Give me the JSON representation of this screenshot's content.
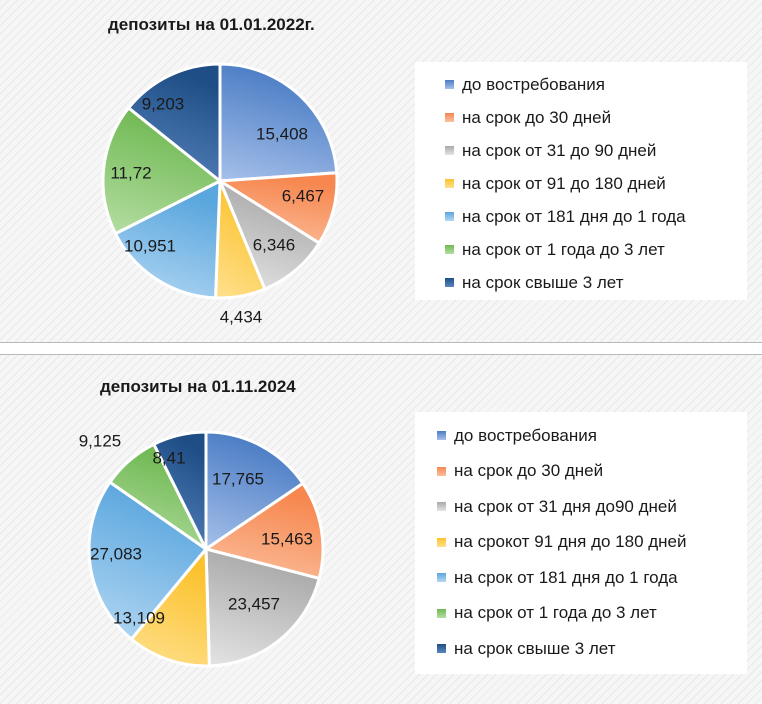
{
  "chart_data": [
    {
      "type": "pie",
      "title": "депозиты на 01.01.2022г.",
      "categories": [
        "до востребования",
        "на срок до 30 дней",
        "на срок от 31 до 90 дней",
        "на срок от 91  до 180 дней",
        "на срок от 181 дня до 1 года",
        "на срок от 1 года до 3 лет",
        "на срок свыше 3 лет"
      ],
      "values": [
        15.408,
        6.467,
        6.346,
        4.434,
        10.951,
        11.72,
        9.203
      ],
      "data_labels": [
        "15,408",
        "6,467",
        "6,346",
        "4,434",
        "10,951",
        "11,72",
        "9,203"
      ],
      "legend_position": "right"
    },
    {
      "type": "pie",
      "title": "депозиты на 01.11.2024",
      "categories": [
        "до востребования",
        "на срок до 30 дней",
        "на срок от 31 дня до90 дней",
        "на срокот 91 дня до 180 дней",
        "на срок от 181 дня до 1 года",
        "на срок от 1 года до 3 лет",
        "на срок свыше 3 лет"
      ],
      "values": [
        17.765,
        15.463,
        23.457,
        13.109,
        27.083,
        9.125,
        8.41
      ],
      "data_labels": [
        "17,765",
        "15,463",
        "23,457",
        "13,109",
        "27,083",
        "9,125",
        "8,41"
      ],
      "legend_position": "right"
    }
  ],
  "colors": [
    "#4a7cc4",
    "#f7874f",
    "#a9a9a9",
    "#fcc22d",
    "#5aa6de",
    "#6fb852",
    "#1f4e86"
  ],
  "colors_light": [
    "#a6c0ea",
    "#fbc0a0",
    "#e4e4e4",
    "#fee08e",
    "#b4d8f3",
    "#b5dea3",
    "#5a86c0"
  ]
}
